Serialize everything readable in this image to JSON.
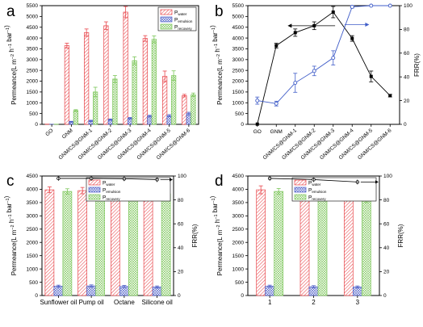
{
  "colors": {
    "water": "#e8474c",
    "emulsion": "#4a5cc7",
    "recovery": "#7cc65a",
    "line_black": "#000000",
    "line_blue": "#3f5cc8"
  },
  "legend": {
    "main": "P",
    "water_sub": "water",
    "emulsion_sub": "emulsion",
    "recovery_sub": "recovery"
  },
  "chart_data": [
    {
      "panel": "a",
      "type": "bar",
      "categories": [
        "GO",
        "GNM",
        "GNM/CS@GNM-1",
        "GNM/CS@GNM-2",
        "GNM/CS@GNM-3",
        "GNM/CS@GNM-4",
        "GNM/CS@GNM-5",
        "GNM/CS@GNM-6"
      ],
      "series": [
        {
          "name": "water",
          "values": [
            10,
            3650,
            4250,
            4570,
            5200,
            3980,
            2220,
            1330
          ]
        },
        {
          "name": "emulsion",
          "values": [
            3,
            120,
            160,
            220,
            280,
            380,
            400,
            500
          ]
        },
        {
          "name": "recovery",
          "values": [
            8,
            640,
            1500,
            2100,
            2950,
            3940,
            2260,
            1370
          ]
        }
      ],
      "errors": [
        [
          0,
          110,
          170,
          180,
          260,
          130,
          250,
          60
        ],
        [
          0,
          20,
          30,
          30,
          40,
          40,
          50,
          60
        ],
        [
          0,
          40,
          220,
          160,
          180,
          160,
          220,
          80
        ]
      ],
      "ylabel": "Permeance(L m⁻² h⁻¹ bar⁻¹)",
      "ylim": [
        0,
        5500
      ],
      "yticks": [
        0,
        500,
        1000,
        1500,
        2000,
        2500,
        3000,
        3500,
        4000,
        4500,
        5000,
        5500
      ]
    },
    {
      "panel": "b",
      "type": "line",
      "categories": [
        "GO",
        "GNM",
        "GNM/CS@GNM-1",
        "GNM/CS@GNM-2",
        "GNM/CS@GNM-3",
        "GNM/CS@GNM-4",
        "GNM/CS@GNM-5",
        "GNM/CS@GNM-6"
      ],
      "series": [
        {
          "name": "Permeance",
          "axis": "left",
          "values": [
            10,
            3650,
            4250,
            4570,
            5200,
            3980,
            2220,
            1330
          ],
          "errors": [
            0,
            110,
            170,
            180,
            260,
            130,
            250,
            60
          ]
        },
        {
          "name": "FRR",
          "axis": "right",
          "values": [
            20,
            17.5,
            35,
            45,
            56,
            99,
            100,
            100
          ],
          "errors": [
            3,
            2,
            8,
            4,
            6,
            1,
            0.5,
            0.5
          ]
        }
      ],
      "ylabel": "Permeance(L m⁻² h⁻¹ bar⁻¹)",
      "y2label": "FRR(%)",
      "ylim": [
        0,
        5500
      ],
      "yticks": [
        0,
        500,
        1000,
        1500,
        2000,
        2500,
        3000,
        3500,
        4000,
        4500,
        5000,
        5500
      ],
      "y2lim": [
        0,
        100
      ],
      "y2ticks": [
        0,
        20,
        40,
        60,
        80,
        100
      ]
    },
    {
      "panel": "c",
      "type": "bar",
      "categories": [
        "Sunflower oil",
        "Pump oil",
        "Octane",
        "Silicone oil"
      ],
      "series": [
        {
          "name": "water",
          "values": [
            3980,
            3950,
            3920,
            3960
          ]
        },
        {
          "name": "emulsion",
          "values": [
            350,
            360,
            340,
            320
          ]
        },
        {
          "name": "recovery",
          "values": [
            3920,
            3880,
            3830,
            3830
          ]
        }
      ],
      "errors": [
        [
          110,
          120,
          130,
          110
        ],
        [
          40,
          40,
          40,
          40
        ],
        [
          100,
          100,
          80,
          110
        ]
      ],
      "frr": [
        98,
        98,
        97.7,
        97
      ],
      "ylabel": "Permeance(L m⁻² h⁻¹ bar⁻¹)",
      "y2label": "FRR(%)",
      "ylim": [
        0,
        4500
      ],
      "yticks": [
        0,
        500,
        1000,
        1500,
        2000,
        2500,
        3000,
        3500,
        4000,
        4500
      ],
      "y2lim": [
        0,
        100
      ],
      "y2ticks": [
        0,
        20,
        40,
        60,
        80,
        100
      ]
    },
    {
      "panel": "d",
      "type": "bar",
      "categories": [
        "1",
        "2",
        "3"
      ],
      "series": [
        {
          "name": "water",
          "values": [
            3980,
            3940,
            3800
          ]
        },
        {
          "name": "emulsion",
          "values": [
            350,
            330,
            320
          ]
        },
        {
          "name": "recovery",
          "values": [
            3920,
            3820,
            3620
          ]
        }
      ],
      "errors": [
        [
          150,
          120,
          160
        ],
        [
          40,
          40,
          40
        ],
        [
          110,
          120,
          120
        ]
      ],
      "frr": [
        98,
        97,
        95
      ],
      "ylabel": "Permeance(L m⁻² h⁻¹ bar⁻¹)",
      "y2label": "FRR(%)",
      "ylim": [
        0,
        4500
      ],
      "yticks": [
        0,
        500,
        1000,
        1500,
        2000,
        2500,
        3000,
        3500,
        4000,
        4500
      ],
      "y2lim": [
        0,
        100
      ],
      "y2ticks": [
        0,
        20,
        40,
        60,
        80,
        100
      ]
    }
  ]
}
